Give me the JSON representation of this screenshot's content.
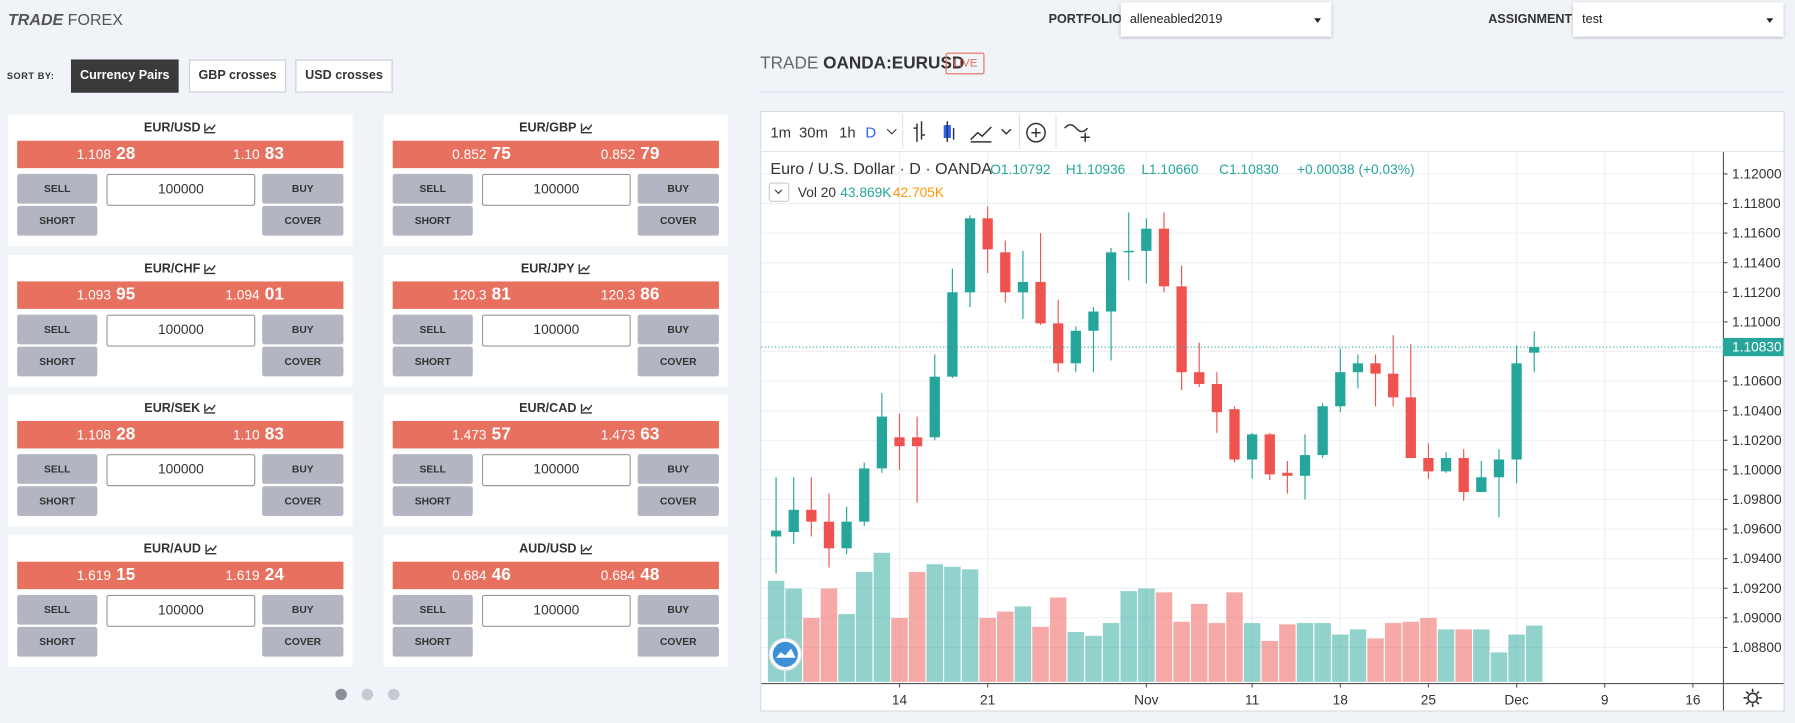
{
  "header": {
    "title_bold": "TRADE",
    "title_rest": "FOREX",
    "portfolio_label": "PORTFOLIO",
    "portfolio": "alleneabled2019",
    "assignment_label": "ASSIGNMENT",
    "assignment": "test"
  },
  "sort": {
    "label": "SORT BY:",
    "options": [
      "Currency Pairs",
      "GBP crosses",
      "USD crosses"
    ]
  },
  "buttons": {
    "sell": "SELL",
    "buy": "BUY",
    "short": "SHORT",
    "cover": "COVER"
  },
  "cards": [
    {
      "pair": "EUR/USD",
      "bid": [
        "1.108",
        "28"
      ],
      "ask": [
        "1.10",
        "83"
      ],
      "amount": "100000"
    },
    {
      "pair": "EUR/GBP",
      "bid": [
        "0.852",
        "75"
      ],
      "ask": [
        "0.852",
        "79"
      ],
      "amount": "100000"
    },
    {
      "pair": "EUR/CHF",
      "bid": [
        "1.093",
        "95"
      ],
      "ask": [
        "1.094",
        "01"
      ],
      "amount": "100000"
    },
    {
      "pair": "EUR/JPY",
      "bid": [
        "120.3",
        "81"
      ],
      "ask": [
        "120.3",
        "86"
      ],
      "amount": "100000"
    },
    {
      "pair": "EUR/SEK",
      "bid": [
        "1.108",
        "28"
      ],
      "ask": [
        "1.10",
        "83"
      ],
      "amount": "100000"
    },
    {
      "pair": "EUR/CAD",
      "bid": [
        "1.473",
        "57"
      ],
      "ask": [
        "1.473",
        "63"
      ],
      "amount": "100000"
    },
    {
      "pair": "EUR/AUD",
      "bid": [
        "1.619",
        "15"
      ],
      "ask": [
        "1.619",
        "24"
      ],
      "amount": "100000"
    },
    {
      "pair": "AUD/USD",
      "bid": [
        "0.684",
        "46"
      ],
      "ask": [
        "0.684",
        "48"
      ],
      "amount": "100000"
    }
  ],
  "trade_header": {
    "prefix": "TRADE",
    "symbol": "OANDA:EURUSD",
    "badge": "LIVE"
  },
  "toolbar": [
    "1m",
    "30m",
    "1h",
    "D"
  ],
  "chart_data": {
    "type": "candlestick",
    "title": "Euro / U.S. Dollar · D · OANDA",
    "ohlc_labels": [
      "O1.10792",
      "H1.10936",
      "L1.10660",
      "C1.10830"
    ],
    "change": "+0.00038 (+0.03%)",
    "volume_title": "Vol 20",
    "volume_labels": [
      "43.869K",
      "42.705K"
    ],
    "colors": {
      "up": "#26a69a",
      "down": "#ef5350"
    },
    "candles": {
      "open": [
        1.0955,
        1.0958,
        1.0973,
        1.0965,
        1.0947,
        1.0965,
        1.1001,
        1.1022,
        1.1022,
        1.1022,
        1.1063,
        1.112,
        1.117,
        1.1147,
        1.112,
        1.1127,
        1.1099,
        1.1072,
        1.1094,
        1.1107,
        1.1147,
        1.1148,
        1.1163,
        1.1124,
        1.1066,
        1.1058,
        1.1041,
        1.1007,
        1.1024,
        1.0998,
        1.0996,
        1.101,
        1.1043,
        1.1066,
        1.1072,
        1.1065,
        1.1049,
        1.1008,
        1.0999,
        1.1008,
        1.0985,
        1.0995,
        1.1007,
        1.10792
      ],
      "high": [
        1.0995,
        1.0995,
        1.0995,
        1.0984,
        1.0975,
        1.1005,
        1.1052,
        1.1038,
        1.1036,
        1.1078,
        1.1136,
        1.1172,
        1.1178,
        1.1155,
        1.1148,
        1.116,
        1.1115,
        1.1097,
        1.111,
        1.115,
        1.1174,
        1.117,
        1.1174,
        1.1138,
        1.1086,
        1.1066,
        1.1043,
        1.1025,
        1.1025,
        1.1006,
        1.1024,
        1.1045,
        1.1082,
        1.1078,
        1.1078,
        1.1091,
        1.1085,
        1.1018,
        1.1012,
        1.1014,
        1.1006,
        1.1014,
        1.1084,
        1.10936
      ],
      "low": [
        1.093,
        1.095,
        1.0955,
        1.0934,
        1.0943,
        1.0962,
        1.0998,
        1.1,
        1.0978,
        1.102,
        1.1062,
        1.111,
        1.1133,
        1.1113,
        1.1102,
        1.1098,
        1.1066,
        1.1066,
        1.1066,
        1.1074,
        1.1128,
        1.1126,
        1.112,
        1.1054,
        1.1056,
        1.1025,
        1.1005,
        1.0994,
        1.0993,
        1.0984,
        1.098,
        1.1008,
        1.1039,
        1.1055,
        1.1043,
        1.1043,
        1.1008,
        1.0994,
        1.0998,
        1.0979,
        1.0985,
        1.0968,
        1.0991,
        1.1066
      ],
      "close": [
        1.0959,
        1.0973,
        1.0965,
        1.0947,
        1.0965,
        1.1001,
        1.1036,
        1.1016,
        1.1016,
        1.1063,
        1.112,
        1.117,
        1.1149,
        1.112,
        1.1127,
        1.1099,
        1.1072,
        1.1094,
        1.1107,
        1.1147,
        1.1148,
        1.1163,
        1.1124,
        1.1066,
        1.1058,
        1.1039,
        1.1007,
        1.1024,
        1.0997,
        1.0996,
        1.101,
        1.1043,
        1.1066,
        1.1072,
        1.1065,
        1.1049,
        1.1008,
        1.0999,
        1.1008,
        1.0985,
        1.0995,
        1.1007,
        1.1072,
        1.1083
      ]
    },
    "volume": [
      79,
      73,
      50,
      73,
      53,
      86,
      101,
      50,
      86,
      92,
      90,
      88,
      50,
      55,
      59,
      43,
      66,
      39,
      36,
      46,
      71,
      73,
      70,
      47,
      61,
      46,
      70,
      46,
      32,
      45,
      46,
      46,
      37,
      41,
      34,
      46,
      47,
      50,
      41,
      41,
      41,
      23,
      37,
      44
    ],
    "xlim": [
      -0.84,
      53.7
    ],
    "xticks": [
      {
        "value": 7,
        "label": "14"
      },
      {
        "value": 12,
        "label": "21"
      },
      {
        "value": 21,
        "label": "Nov"
      },
      {
        "value": 27,
        "label": "11"
      },
      {
        "value": 32,
        "label": "18"
      },
      {
        "value": 37,
        "label": "25"
      },
      {
        "value": 42,
        "label": "Dec"
      },
      {
        "value": 47,
        "label": "9"
      },
      {
        "value": 52,
        "label": "16"
      }
    ],
    "ylim": [
      1.0856,
      1.12147
    ],
    "yticks": [
      {
        "value": 1.12,
        "label": "1.12000"
      },
      {
        "value": 1.118,
        "label": "1.11800"
      },
      {
        "value": 1.116,
        "label": "1.11600"
      },
      {
        "value": 1.114,
        "label": "1.11400"
      },
      {
        "value": 1.112,
        "label": "1.11200"
      },
      {
        "value": 1.11,
        "label": "1.11000"
      },
      {
        "value": 1.108,
        "label": "1.10800"
      },
      {
        "value": 1.106,
        "label": "1.10600"
      },
      {
        "value": 1.104,
        "label": "1.10400"
      },
      {
        "value": 1.102,
        "label": "1.10200"
      },
      {
        "value": 1.1,
        "label": "1.10000"
      },
      {
        "value": 1.098,
        "label": "1.09800"
      },
      {
        "value": 1.096,
        "label": "1.09600"
      },
      {
        "value": 1.094,
        "label": "1.09400"
      },
      {
        "value": 1.092,
        "label": "1.09200"
      },
      {
        "value": 1.09,
        "label": "1.09000"
      },
      {
        "value": 1.088,
        "label": "1.08800"
      }
    ],
    "last_price": {
      "value": 1.1083,
      "label": "1.10830"
    },
    "grid": true
  }
}
